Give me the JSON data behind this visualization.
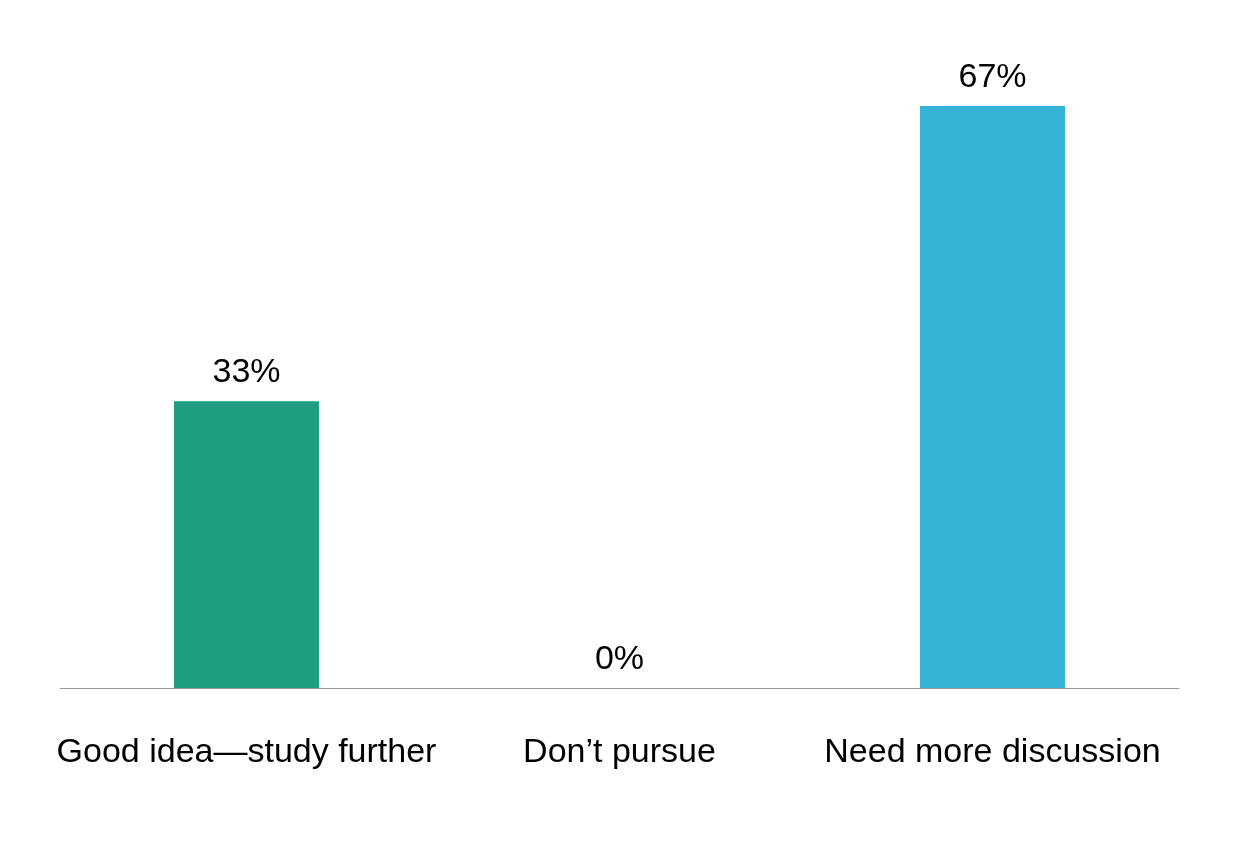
{
  "chart_data": {
    "type": "bar",
    "categories": [
      "Good idea—study further",
      "Don’t pursue",
      "Need more discussion"
    ],
    "values": [
      33,
      0,
      67
    ],
    "colors": [
      "#1f9e7f",
      "#6b9a35",
      "#35b3d6"
    ],
    "value_labels": [
      "33%",
      "0%",
      "67%"
    ]
  }
}
